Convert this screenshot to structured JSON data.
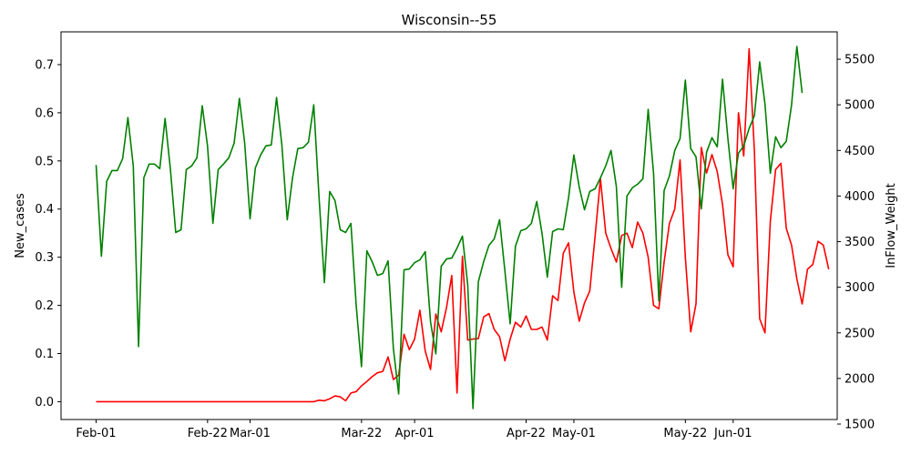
{
  "chart_data": {
    "type": "line",
    "title": "Wisconsin--55",
    "xlabel": "",
    "ylabel_left": "New_cases",
    "ylabel_right": "InFlow_Weight",
    "x_ticks": [
      "Feb-01",
      "Feb-22",
      "Mar-01",
      "Mar-22",
      "Apr-01",
      "Apr-22",
      "May-01",
      "May-22",
      "Jun-01"
    ],
    "x_tick_days": [
      0,
      21,
      29,
      50,
      60,
      81,
      90,
      111,
      120
    ],
    "x_range_days": [
      -6.6,
      139.6
    ],
    "ylim_left": [
      -0.037,
      0.768
    ],
    "yticks_left": [
      "0.0",
      "0.1",
      "0.2",
      "0.3",
      "0.4",
      "0.5",
      "0.6",
      "0.7"
    ],
    "ylim_right": [
      1550,
      5800
    ],
    "yticks_right": [
      "1500",
      "2000",
      "2500",
      "3000",
      "3500",
      "4000",
      "4500",
      "5000",
      "5500"
    ],
    "grid": false,
    "series": [
      {
        "axis": "left",
        "color": "#ff0000",
        "points": [
          [
            0,
            0
          ],
          [
            41,
            0
          ],
          [
            42,
            0.003
          ],
          [
            43,
            0.002
          ],
          [
            44,
            0.006
          ],
          [
            45,
            0.012
          ],
          [
            46,
            0.01
          ],
          [
            47,
            0.002
          ],
          [
            48,
            0.018
          ],
          [
            49,
            0.021
          ],
          [
            50,
            0.033
          ],
          [
            51,
            0.042
          ],
          [
            52,
            0.052
          ],
          [
            53,
            0.06
          ],
          [
            54,
            0.063
          ],
          [
            55,
            0.093
          ],
          [
            56,
            0.046
          ],
          [
            57,
            0.055
          ],
          [
            58,
            0.14
          ],
          [
            59,
            0.108
          ],
          [
            60,
            0.13
          ],
          [
            61,
            0.19
          ],
          [
            62,
            0.105
          ],
          [
            63,
            0.067
          ],
          [
            64,
            0.182
          ],
          [
            65,
            0.145
          ],
          [
            66,
            0.195
          ],
          [
            67,
            0.262
          ],
          [
            68,
            0.018
          ],
          [
            69,
            0.302
          ],
          [
            70,
            0.128
          ],
          [
            71,
            0.13
          ],
          [
            72,
            0.131
          ],
          [
            73,
            0.176
          ],
          [
            74,
            0.183
          ],
          [
            75,
            0.15
          ],
          [
            76,
            0.135
          ],
          [
            77,
            0.085
          ],
          [
            78,
            0.13
          ],
          [
            79,
            0.165
          ],
          [
            80,
            0.155
          ],
          [
            81,
            0.178
          ],
          [
            82,
            0.15
          ],
          [
            83,
            0.15
          ],
          [
            84,
            0.155
          ],
          [
            85,
            0.128
          ],
          [
            86,
            0.22
          ],
          [
            87,
            0.21
          ],
          [
            88,
            0.308
          ],
          [
            89,
            0.33
          ],
          [
            90,
            0.228
          ],
          [
            91,
            0.167
          ],
          [
            92,
            0.205
          ],
          [
            93,
            0.23
          ],
          [
            94,
            0.345
          ],
          [
            95,
            0.463
          ],
          [
            96,
            0.35
          ],
          [
            97,
            0.318
          ],
          [
            98,
            0.29
          ],
          [
            99,
            0.345
          ],
          [
            100,
            0.35
          ],
          [
            101,
            0.32
          ],
          [
            102,
            0.373
          ],
          [
            103,
            0.35
          ],
          [
            104,
            0.3
          ],
          [
            105,
            0.2
          ],
          [
            106,
            0.193
          ],
          [
            107,
            0.29
          ],
          [
            108,
            0.37
          ],
          [
            109,
            0.4
          ],
          [
            110,
            0.502
          ],
          [
            111,
            0.3
          ],
          [
            112,
            0.145
          ],
          [
            113,
            0.203
          ],
          [
            114,
            0.528
          ],
          [
            115,
            0.475
          ],
          [
            116,
            0.513
          ],
          [
            117,
            0.478
          ],
          [
            118,
            0.41
          ],
          [
            119,
            0.305
          ],
          [
            120,
            0.28
          ],
          [
            121,
            0.6
          ],
          [
            122,
            0.51
          ],
          [
            123,
            0.733
          ],
          [
            124,
            0.52
          ],
          [
            125,
            0.172
          ],
          [
            126,
            0.143
          ],
          [
            127,
            0.375
          ],
          [
            128,
            0.482
          ],
          [
            129,
            0.495
          ],
          [
            130,
            0.36
          ],
          [
            131,
            0.325
          ],
          [
            132,
            0.255
          ],
          [
            133,
            0.203
          ],
          [
            134,
            0.275
          ],
          [
            135,
            0.285
          ],
          [
            136,
            0.333
          ],
          [
            137,
            0.325
          ],
          [
            138,
            0.275
          ]
        ]
      },
      {
        "axis": "right",
        "color": "#008000",
        "points": [
          [
            0,
            4340
          ],
          [
            1,
            3340
          ],
          [
            2,
            4160
          ],
          [
            3,
            4280
          ],
          [
            4,
            4280
          ],
          [
            5,
            4410
          ],
          [
            6,
            4860
          ],
          [
            7,
            4330
          ],
          [
            8,
            2350
          ],
          [
            9,
            4200
          ],
          [
            10,
            4350
          ],
          [
            11,
            4350
          ],
          [
            12,
            4300
          ],
          [
            13,
            4850
          ],
          [
            14,
            4300
          ],
          [
            15,
            3600
          ],
          [
            16,
            3630
          ],
          [
            17,
            4290
          ],
          [
            18,
            4330
          ],
          [
            19,
            4420
          ],
          [
            20,
            4990
          ],
          [
            21,
            4550
          ],
          [
            22,
            3700
          ],
          [
            23,
            4290
          ],
          [
            24,
            4350
          ],
          [
            25,
            4420
          ],
          [
            26,
            4580
          ],
          [
            27,
            5070
          ],
          [
            28,
            4580
          ],
          [
            29,
            3750
          ],
          [
            30,
            4310
          ],
          [
            31,
            4450
          ],
          [
            32,
            4550
          ],
          [
            33,
            4560
          ],
          [
            34,
            5080
          ],
          [
            35,
            4560
          ],
          [
            36,
            3740
          ],
          [
            37,
            4200
          ],
          [
            38,
            4520
          ],
          [
            39,
            4530
          ],
          [
            40,
            4590
          ],
          [
            41,
            5000
          ],
          [
            42,
            3990
          ],
          [
            43,
            3050
          ],
          [
            44,
            4050
          ],
          [
            45,
            3950
          ],
          [
            46,
            3630
          ],
          [
            47,
            3600
          ],
          [
            48,
            3700
          ],
          [
            49,
            2800
          ],
          [
            50,
            2130
          ],
          [
            51,
            3400
          ],
          [
            52,
            3280
          ],
          [
            53,
            3130
          ],
          [
            54,
            3150
          ],
          [
            55,
            3290
          ],
          [
            56,
            2330
          ],
          [
            57,
            1830
          ],
          [
            58,
            3190
          ],
          [
            59,
            3200
          ],
          [
            60,
            3270
          ],
          [
            61,
            3300
          ],
          [
            62,
            3390
          ],
          [
            63,
            2620
          ],
          [
            64,
            2270
          ],
          [
            65,
            3230
          ],
          [
            66,
            3310
          ],
          [
            67,
            3320
          ],
          [
            68,
            3430
          ],
          [
            69,
            3560
          ],
          [
            70,
            3030
          ],
          [
            71,
            1670
          ],
          [
            72,
            3060
          ],
          [
            73,
            3280
          ],
          [
            74,
            3460
          ],
          [
            75,
            3530
          ],
          [
            76,
            3740
          ],
          [
            77,
            3180
          ],
          [
            78,
            2600
          ],
          [
            79,
            3450
          ],
          [
            80,
            3620
          ],
          [
            81,
            3640
          ],
          [
            82,
            3700
          ],
          [
            83,
            3940
          ],
          [
            84,
            3590
          ],
          [
            85,
            3110
          ],
          [
            86,
            3610
          ],
          [
            87,
            3640
          ],
          [
            88,
            3630
          ],
          [
            89,
            3980
          ],
          [
            90,
            4450
          ],
          [
            91,
            4100
          ],
          [
            92,
            3850
          ],
          [
            93,
            4050
          ],
          [
            94,
            4080
          ],
          [
            95,
            4200
          ],
          [
            96,
            4330
          ],
          [
            97,
            4500
          ],
          [
            98,
            4100
          ],
          [
            99,
            3000
          ],
          [
            100,
            4000
          ],
          [
            101,
            4090
          ],
          [
            102,
            4130
          ],
          [
            103,
            4190
          ],
          [
            104,
            4950
          ],
          [
            105,
            4250
          ],
          [
            106,
            2850
          ],
          [
            107,
            4060
          ],
          [
            108,
            4220
          ],
          [
            109,
            4500
          ],
          [
            110,
            4630
          ],
          [
            111,
            5270
          ],
          [
            112,
            4520
          ],
          [
            113,
            4430
          ],
          [
            114,
            3860
          ],
          [
            115,
            4480
          ],
          [
            116,
            4640
          ],
          [
            117,
            4540
          ],
          [
            118,
            5280
          ],
          [
            119,
            4630
          ],
          [
            120,
            4080
          ],
          [
            121,
            4470
          ],
          [
            122,
            4550
          ],
          [
            123,
            4740
          ],
          [
            124,
            4880
          ],
          [
            125,
            5470
          ],
          [
            126,
            5010
          ],
          [
            127,
            4250
          ],
          [
            128,
            4650
          ],
          [
            129,
            4530
          ],
          [
            130,
            4600
          ],
          [
            131,
            5000
          ],
          [
            132,
            5640
          ],
          [
            133,
            5130
          ]
        ]
      }
    ]
  }
}
